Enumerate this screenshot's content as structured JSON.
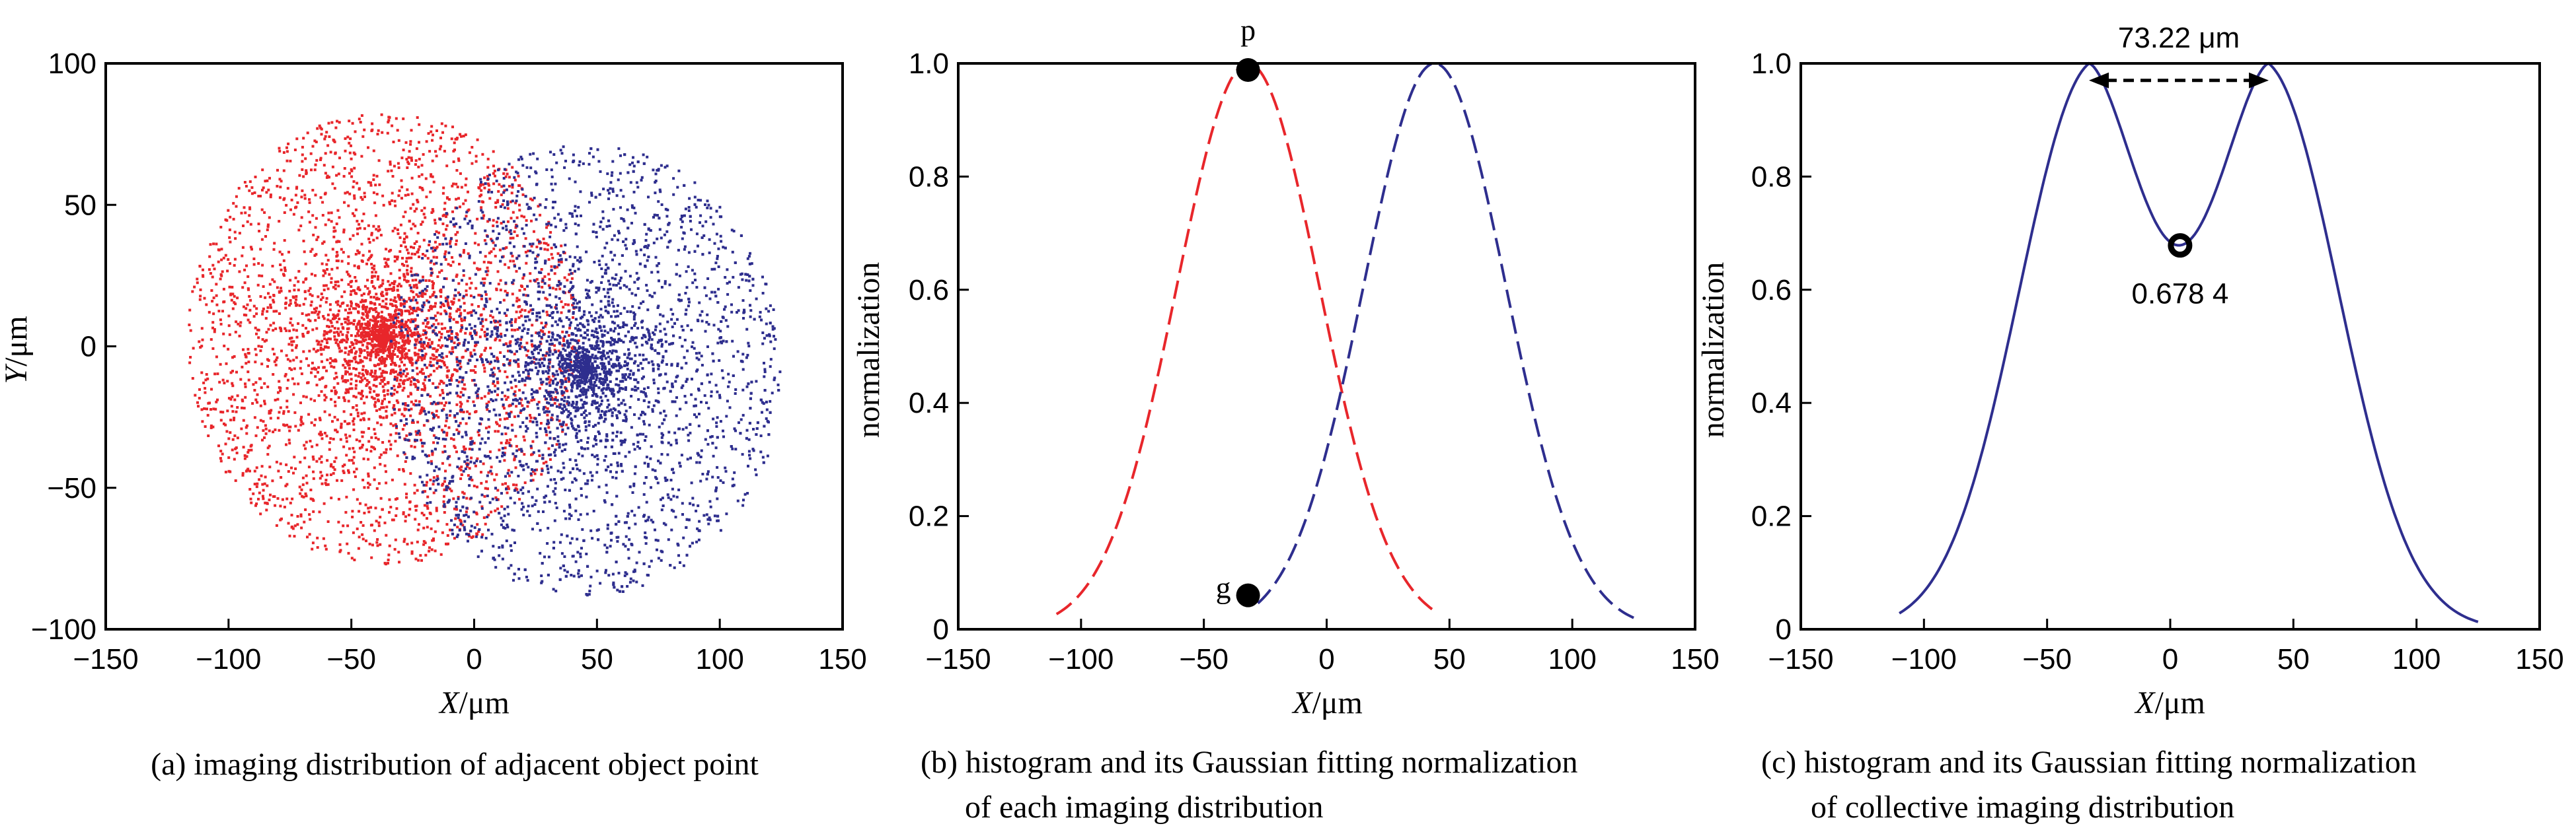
{
  "colors": {
    "red": "#e8262b",
    "blue": "#2e2e8e",
    "axis": "#000000"
  },
  "chart_data": [
    {
      "id": "a",
      "type": "scatter",
      "caption": "(a) imaging distribution of adjacent object point",
      "xlabel_italic": "X",
      "xlabel_unit": "/μm",
      "ylabel_italic": "Y",
      "ylabel_unit": "/μm",
      "xlim": [
        -150,
        150
      ],
      "ylim": [
        -100,
        100
      ],
      "xticks": [
        -150,
        -100,
        -50,
        0,
        50,
        100,
        150
      ],
      "yticks": [
        -100,
        -50,
        0,
        50,
        100
      ],
      "xtick_labels": [
        "−150",
        "−100",
        "−50",
        "0",
        "50",
        "100",
        "150"
      ],
      "ytick_labels": [
        "−100",
        "−50",
        "0",
        "50",
        "100"
      ],
      "series": [
        {
          "color": "#e8262b",
          "center": [
            -37,
            3
          ],
          "radius": 80,
          "points": 3800
        },
        {
          "color": "#2e2e8e",
          "center": [
            45,
            -8
          ],
          "radius": 80,
          "points": 3800
        }
      ]
    },
    {
      "id": "b",
      "type": "line",
      "caption_lines": [
        "(b) histogram and its Gaussian fitting normalization",
        "of each imaging distribution"
      ],
      "xlabel_italic": "X",
      "xlabel_unit": "/μm",
      "ylabel": "normalization",
      "xlim": [
        -150,
        150
      ],
      "ylim": [
        0,
        1
      ],
      "xticks": [
        -150,
        -100,
        -50,
        0,
        50,
        100,
        150
      ],
      "yticks": [
        0,
        0.2,
        0.4,
        0.6,
        0.8,
        1.0
      ],
      "xtick_labels": [
        "−150",
        "−100",
        "−50",
        "0",
        "50",
        "100",
        "150"
      ],
      "ytick_labels": [
        "0",
        "0.2",
        "0.4",
        "0.6",
        "0.8",
        "1.0"
      ],
      "series": [
        {
          "color": "#e8262b",
          "style": "dashed",
          "mu": -32,
          "sigma": 29,
          "x_range": [
            -110,
            45
          ]
        },
        {
          "color": "#2e2e8e",
          "style": "dashed",
          "mu": 44,
          "sigma": 29,
          "x_range": [
            -28,
            125
          ]
        }
      ],
      "annotations": [
        {
          "label": "p",
          "x": -32,
          "y": 1.0
        },
        {
          "label": "g",
          "x": -32,
          "y": 0.06
        }
      ]
    },
    {
      "id": "c",
      "type": "line",
      "caption_lines": [
        "(c) histogram and its Gaussian fitting normalization",
        "of collective imaging distribution"
      ],
      "xlabel_italic": "X",
      "xlabel_unit": "/μm",
      "ylabel": "normalization",
      "xlim": [
        -150,
        150
      ],
      "ylim": [
        0,
        1
      ],
      "xticks": [
        -150,
        -100,
        -50,
        0,
        50,
        100,
        150
      ],
      "yticks": [
        0,
        0.2,
        0.4,
        0.6,
        0.8,
        1.0
      ],
      "xtick_labels": [
        "−150",
        "−100",
        "−50",
        "0",
        "50",
        "100",
        "150"
      ],
      "ytick_labels": [
        "0",
        "0.2",
        "0.4",
        "0.6",
        "0.8",
        "1.0"
      ],
      "series": [
        {
          "color": "#2e2e8e",
          "style": "solid",
          "peaks": [
            -33,
            40
          ],
          "dip_x": 4,
          "dip_y": 0.6784,
          "x_range": [
            -110,
            125
          ]
        }
      ],
      "peak_distance_label": "73.22 μm",
      "dip_label": "0.678 4"
    }
  ]
}
